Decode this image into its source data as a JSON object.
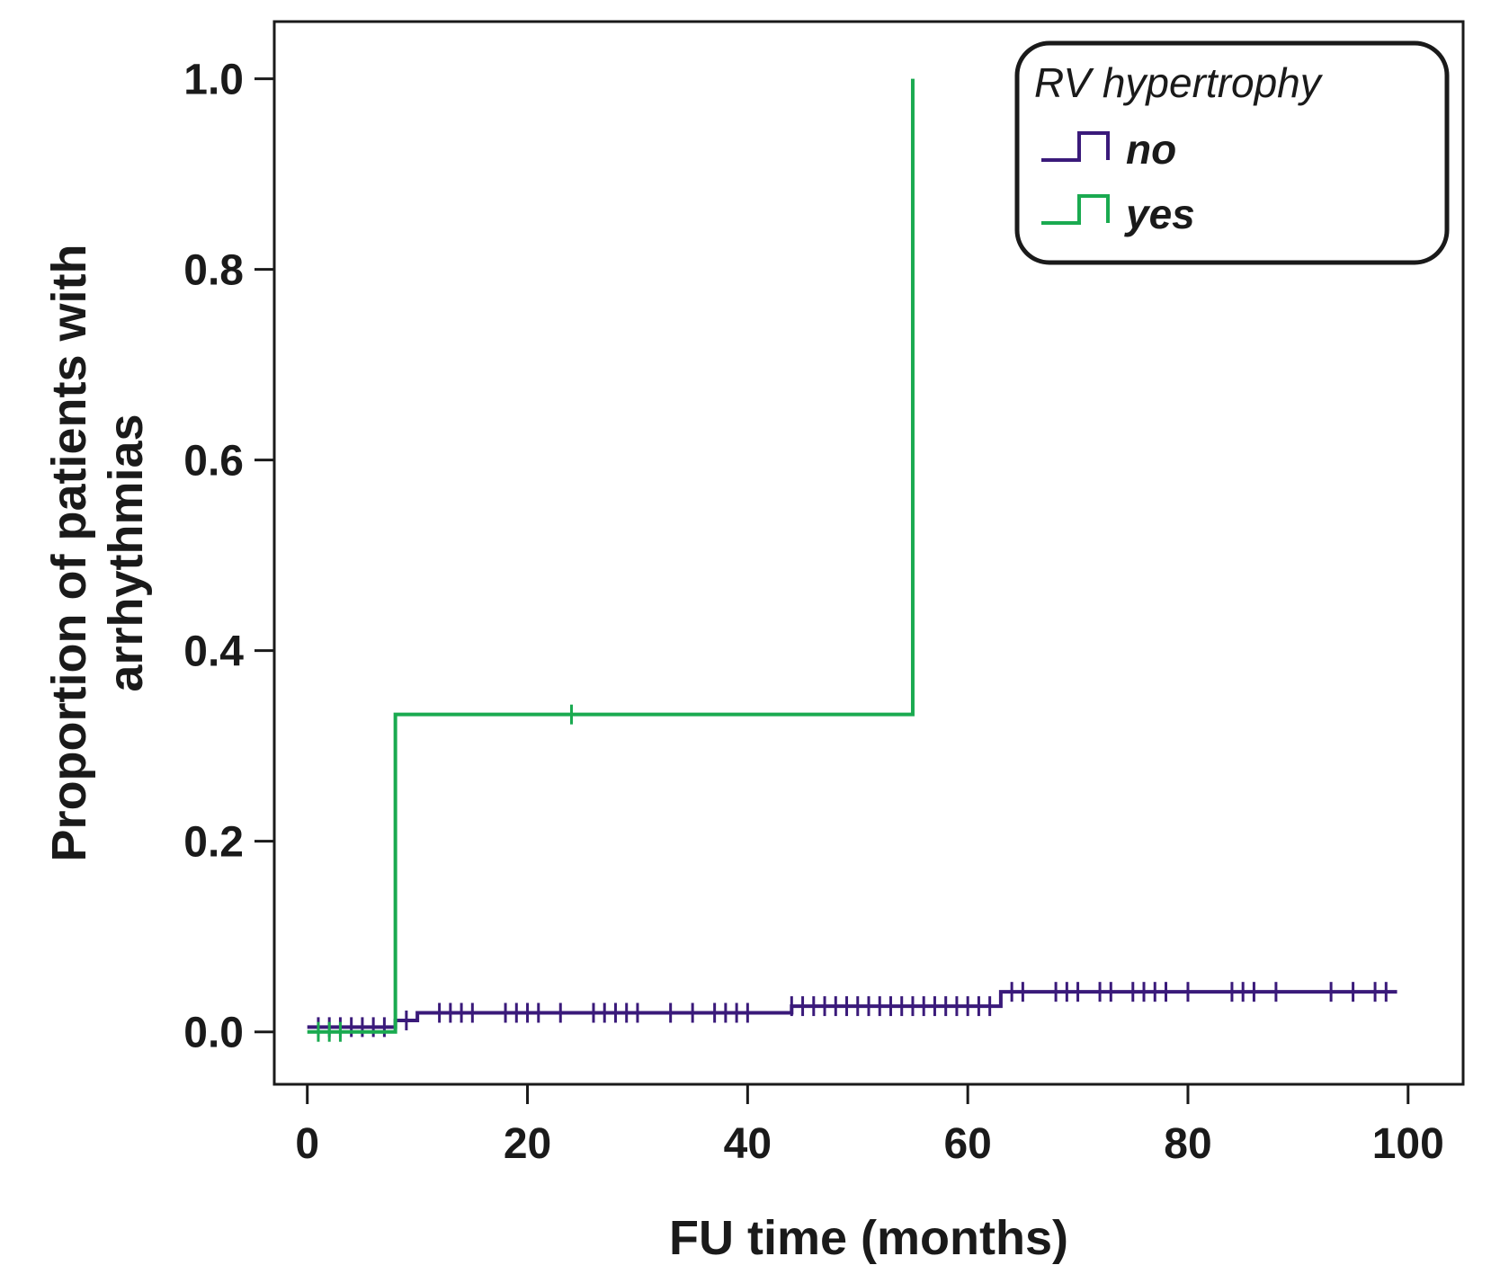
{
  "chart_data": {
    "type": "line",
    "subtype": "kaplan-meier-cumulative-incidence",
    "title": "",
    "xlabel": "FU time (months)",
    "ylabel_lines": [
      "Proportion of patients with",
      "arrhythmias"
    ],
    "xlim": [
      -3,
      105
    ],
    "ylim": [
      -0.055,
      1.06
    ],
    "xticks": [
      0,
      20,
      40,
      60,
      80,
      100
    ],
    "yticks": [
      0.0,
      0.2,
      0.4,
      0.6,
      0.8,
      1.0
    ],
    "xtick_labels": [
      "0",
      "20",
      "40",
      "60",
      "80",
      "100"
    ],
    "ytick_labels": [
      "0.0",
      "0.2",
      "0.4",
      "0.6",
      "0.8",
      "1.0"
    ],
    "grid": false,
    "legend": {
      "title": "RV hypertrophy",
      "position": "top-right"
    },
    "series": [
      {
        "name": "no",
        "color": "#3a1a7a",
        "steps": [
          [
            0,
            0.005
          ],
          [
            8,
            0.012
          ],
          [
            10,
            0.02
          ],
          [
            44,
            0.027
          ],
          [
            63,
            0.042
          ],
          [
            99,
            0.042
          ]
        ],
        "censored": [
          1,
          2,
          3,
          4,
          5,
          6,
          7,
          9,
          12,
          13,
          14,
          15,
          18,
          19,
          20,
          21,
          23,
          26,
          27,
          28,
          29,
          30,
          33,
          35,
          37,
          38,
          39,
          40,
          44,
          45,
          46,
          47,
          48,
          49,
          50,
          51,
          52,
          53,
          54,
          55,
          56,
          57,
          58,
          59,
          60,
          61,
          62,
          64,
          65,
          68,
          69,
          70,
          72,
          73,
          75,
          76,
          77,
          78,
          80,
          84,
          85,
          86,
          88,
          93,
          95,
          97,
          98
        ]
      },
      {
        "name": "yes",
        "color": "#1aaa50",
        "steps": [
          [
            0,
            0.0
          ],
          [
            8,
            0.333
          ],
          [
            55,
            1.0
          ],
          [
            55,
            1.0
          ]
        ],
        "censored": [
          1,
          2,
          3,
          24
        ]
      }
    ]
  }
}
